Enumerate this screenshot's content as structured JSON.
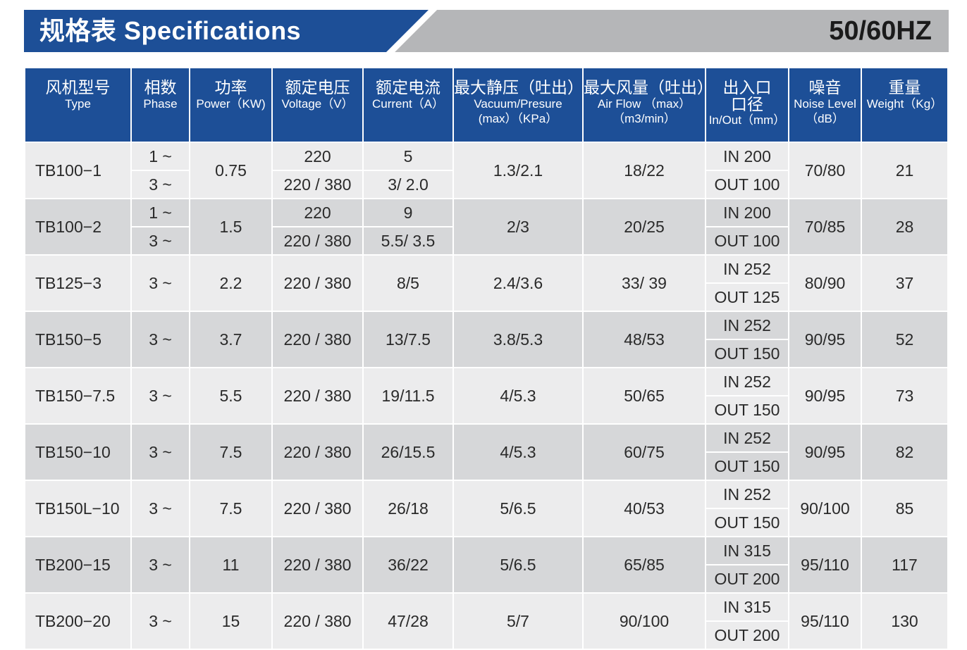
{
  "title": "规格表 Specifications",
  "frequency": "50/60HZ",
  "colors": {
    "header_blue": "#1d4f97",
    "banner_gray": "#b5b6b8",
    "row_light": "#ececed",
    "row_dark": "#d6d7d9"
  },
  "headers": [
    {
      "cn": "风机型号",
      "en": "Type"
    },
    {
      "cn": "相数",
      "en": "Phase"
    },
    {
      "cn": "功率",
      "en": "Power（KW)"
    },
    {
      "cn": "额定电压",
      "en": "Voltage（V）"
    },
    {
      "cn": "额定电流",
      "en": "Current（A）"
    },
    {
      "cn": "最大静压（吐出）",
      "en": "Vacuum/Presure",
      "en2": "(max）（KPa）"
    },
    {
      "cn": "最大风量（吐出）",
      "en": "Air Flow （max）",
      "en2": "（m3/min）"
    },
    {
      "cn": "出入口",
      "cn2": "口径",
      "en": "In/Out（mm）"
    },
    {
      "cn": "噪音",
      "en": "Noise Level",
      "en2": "（dB）"
    },
    {
      "cn": "重量",
      "en": "Weight（Kg）"
    }
  ],
  "rows": [
    {
      "type": "TB100−1",
      "phase": [
        "1 ~",
        "3 ~"
      ],
      "power": "0.75",
      "voltage": [
        "220",
        "220 / 380"
      ],
      "current": [
        "5",
        "3/ 2.0"
      ],
      "pressure": "1.3/2.1",
      "airflow": "18/22",
      "in": "IN 200",
      "out": "OUT 100",
      "noise": "70/80",
      "weight": "21"
    },
    {
      "type": "TB100−2",
      "phase": [
        "1 ~",
        "3 ~"
      ],
      "power": "1.5",
      "voltage": [
        "220",
        "220 / 380"
      ],
      "current": [
        "9",
        "5.5/ 3.5"
      ],
      "pressure": "2/3",
      "airflow": "20/25",
      "in": "IN 200",
      "out": "OUT 100",
      "noise": "70/85",
      "weight": "28"
    },
    {
      "type": "TB125−3",
      "phase": [
        "3 ~"
      ],
      "power": "2.2",
      "voltage": [
        "220 / 380"
      ],
      "current": [
        "8/5"
      ],
      "pressure": "2.4/3.6",
      "airflow": "33/ 39",
      "in": "IN 252",
      "out": "OUT 125",
      "noise": "80/90",
      "weight": "37"
    },
    {
      "type": "TB150−5",
      "phase": [
        "3 ~"
      ],
      "power": "3.7",
      "voltage": [
        "220 / 380"
      ],
      "current": [
        "13/7.5"
      ],
      "pressure": "3.8/5.3",
      "airflow": "48/53",
      "in": "IN 252",
      "out": "OUT 150",
      "noise": "90/95",
      "weight": "52"
    },
    {
      "type": "TB150−7.5",
      "phase": [
        "3 ~"
      ],
      "power": "5.5",
      "voltage": [
        "220 / 380"
      ],
      "current": [
        "19/11.5"
      ],
      "pressure": "4/5.3",
      "airflow": "50/65",
      "in": "IN 252",
      "out": "OUT 150",
      "noise": "90/95",
      "weight": "73"
    },
    {
      "type": "TB150−10",
      "phase": [
        "3 ~"
      ],
      "power": "7.5",
      "voltage": [
        "220 / 380"
      ],
      "current": [
        "26/15.5"
      ],
      "pressure": "4/5.3",
      "airflow": "60/75",
      "in": "IN 252",
      "out": "OUT 150",
      "noise": "90/95",
      "weight": "82"
    },
    {
      "type": "TB150L−10",
      "phase": [
        "3 ~"
      ],
      "power": "7.5",
      "voltage": [
        "220 / 380"
      ],
      "current": [
        "26/18"
      ],
      "pressure": "5/6.5",
      "airflow": "40/53",
      "in": "IN 252",
      "out": "OUT 150",
      "noise": "90/100",
      "weight": "85"
    },
    {
      "type": "TB200−15",
      "phase": [
        "3 ~"
      ],
      "power": "11",
      "voltage": [
        "220 / 380"
      ],
      "current": [
        "36/22"
      ],
      "pressure": "5/6.5",
      "airflow": "65/85",
      "in": "IN 315",
      "out": "OUT 200",
      "noise": "95/110",
      "weight": "117"
    },
    {
      "type": "TB200−20",
      "phase": [
        "3 ~"
      ],
      "power": "15",
      "voltage": [
        "220 / 380"
      ],
      "current": [
        "47/28"
      ],
      "pressure": "5/7",
      "airflow": "90/100",
      "in": "IN 315",
      "out": "OUT 200",
      "noise": "95/110",
      "weight": "130"
    }
  ]
}
